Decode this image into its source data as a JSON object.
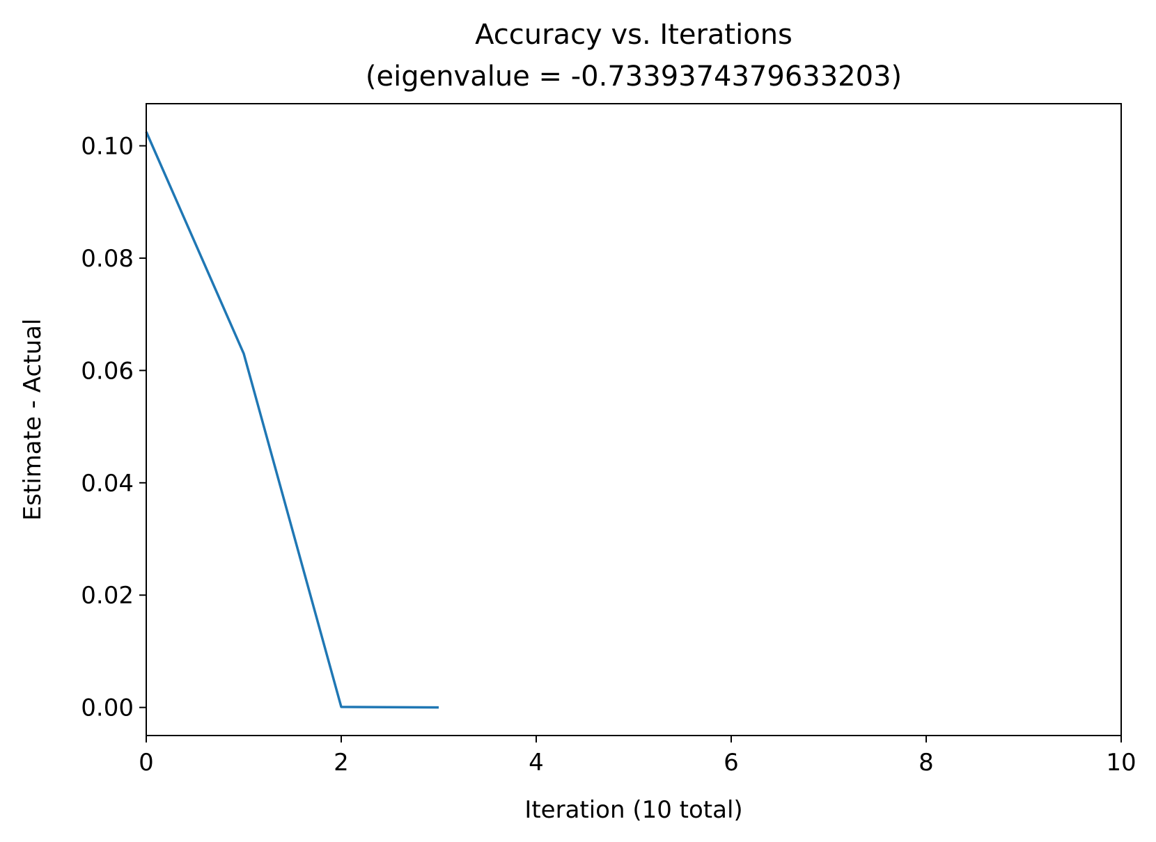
{
  "chart_data": {
    "type": "line",
    "title": "Accuracy vs. Iterations",
    "subtitle": "(eigenvalue = -0.7339374379633203)",
    "xlabel": "Iteration (10 total)",
    "ylabel": "Estimate - Actual",
    "xlim": [
      0,
      10
    ],
    "ylim": [
      -0.005,
      0.1075
    ],
    "xticks": [
      0,
      2,
      4,
      6,
      8,
      10
    ],
    "xtick_labels": [
      "0",
      "2",
      "4",
      "6",
      "8",
      "10"
    ],
    "yticks": [
      0.0,
      0.02,
      0.04,
      0.06,
      0.08,
      0.1
    ],
    "ytick_labels": [
      "0.00",
      "0.02",
      "0.04",
      "0.06",
      "0.08",
      "0.10"
    ],
    "grid": false,
    "legend": false,
    "series": [
      {
        "color": "#1f77b4",
        "x": [
          0,
          1,
          2,
          3
        ],
        "y": [
          0.1025,
          0.063,
          0.0001,
          0.0
        ]
      }
    ]
  }
}
